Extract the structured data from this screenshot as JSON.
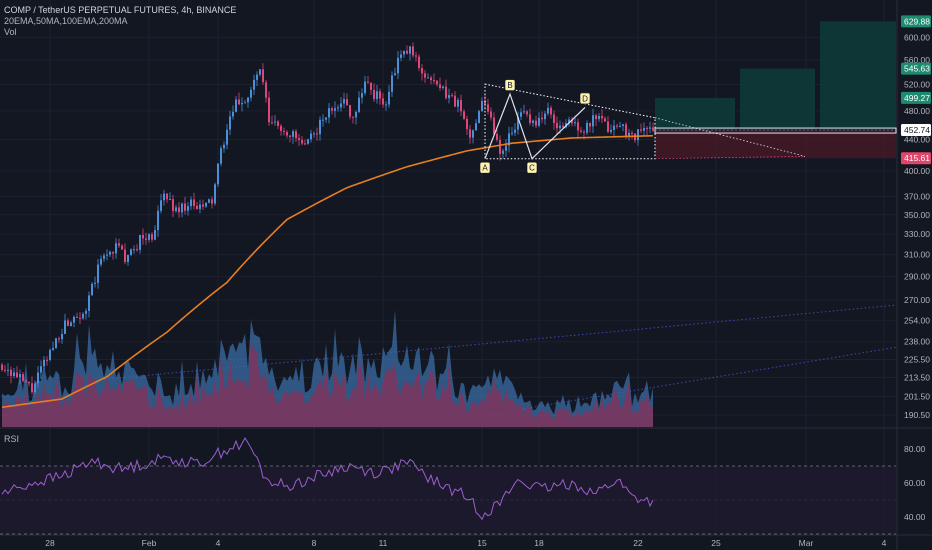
{
  "header": {
    "title": "COMP / TetherUS PERPETUAL FUTURES, 4h, BINANCE",
    "indicators": "20EMA,50MA,100EMA,200MA",
    "volume_label": "Vol"
  },
  "rsi_panel": {
    "label": "RSI"
  },
  "colors": {
    "background": "#131722",
    "bull": "#4a8fd8",
    "bear": "#e0457b",
    "ma": "#e67e22",
    "rsi": "#9c5fcf",
    "target_zone": "#0e3a3a",
    "stop_zone": "#4a1a26"
  },
  "chart_data": [
    {
      "type": "candlestick",
      "price_axis": {
        "ticks": [
          "600.00",
          "560.00",
          "520.00",
          "480.00",
          "440.00",
          "400.00",
          "370.00",
          "350.00",
          "330.00",
          "310.00",
          "290.00",
          "270.00",
          "254.00",
          "238.00",
          "225.50",
          "213.50",
          "201.50",
          "190.50"
        ],
        "scale": "log",
        "range": [
          182,
          660
        ]
      },
      "time_axis": {
        "ticks": [
          "28",
          "Feb",
          "4",
          "8",
          "11",
          "15",
          "18",
          "22",
          "25",
          "Mar",
          "4"
        ]
      },
      "price_labels": [
        {
          "value": "629.88",
          "role": "target-3"
        },
        {
          "value": "545.63",
          "role": "target-2"
        },
        {
          "value": "499.27",
          "role": "target-1"
        },
        {
          "value": "452.74",
          "role": "current-price"
        },
        {
          "value": "415.61",
          "role": "stop"
        }
      ],
      "pattern_points": [
        "A",
        "B",
        "C",
        "D"
      ],
      "pattern_prices": {
        "A": 415,
        "B": 500,
        "C": 415,
        "D": 490
      },
      "target_zones": [
        {
          "from": 452.74,
          "to": 499.27
        },
        {
          "from": 452.74,
          "to": 545.63
        },
        {
          "from": 452.74,
          "to": 629.88
        }
      ],
      "stop_zone": {
        "from": 415.61,
        "to": 452.74
      },
      "candle_path": [
        {
          "i": 0,
          "price": 222
        },
        {
          "i": 6,
          "price": 212
        },
        {
          "i": 10,
          "price": 206
        },
        {
          "i": 15,
          "price": 226
        },
        {
          "i": 20,
          "price": 248
        },
        {
          "i": 24,
          "price": 258
        },
        {
          "i": 28,
          "price": 262
        },
        {
          "i": 33,
          "price": 305
        },
        {
          "i": 38,
          "price": 318
        },
        {
          "i": 42,
          "price": 305
        },
        {
          "i": 46,
          "price": 325
        },
        {
          "i": 50,
          "price": 328
        },
        {
          "i": 54,
          "price": 372
        },
        {
          "i": 58,
          "price": 355
        },
        {
          "i": 62,
          "price": 362
        },
        {
          "i": 66,
          "price": 356
        },
        {
          "i": 70,
          "price": 365
        },
        {
          "i": 74,
          "price": 440
        },
        {
          "i": 78,
          "price": 490
        },
        {
          "i": 82,
          "price": 500
        },
        {
          "i": 86,
          "price": 545
        },
        {
          "i": 89,
          "price": 465
        },
        {
          "i": 93,
          "price": 455
        },
        {
          "i": 97,
          "price": 445
        },
        {
          "i": 101,
          "price": 428
        },
        {
          "i": 105,
          "price": 455
        },
        {
          "i": 109,
          "price": 478
        },
        {
          "i": 113,
          "price": 498
        },
        {
          "i": 117,
          "price": 472
        },
        {
          "i": 121,
          "price": 525
        },
        {
          "i": 124,
          "price": 505
        },
        {
          "i": 128,
          "price": 492
        },
        {
          "i": 132,
          "price": 560
        },
        {
          "i": 136,
          "price": 578
        },
        {
          "i": 140,
          "price": 542
        },
        {
          "i": 144,
          "price": 520
        },
        {
          "i": 148,
          "price": 505
        },
        {
          "i": 152,
          "price": 490
        },
        {
          "i": 156,
          "price": 440
        },
        {
          "i": 160,
          "price": 500
        },
        {
          "i": 163,
          "price": 470
        },
        {
          "i": 166,
          "price": 420
        },
        {
          "i": 170,
          "price": 455
        },
        {
          "i": 174,
          "price": 475
        },
        {
          "i": 178,
          "price": 465
        },
        {
          "i": 182,
          "price": 478
        },
        {
          "i": 186,
          "price": 455
        },
        {
          "i": 190,
          "price": 465
        },
        {
          "i": 194,
          "price": 452
        },
        {
          "i": 198,
          "price": 470
        },
        {
          "i": 202,
          "price": 455
        },
        {
          "i": 206,
          "price": 460
        },
        {
          "i": 210,
          "price": 445
        },
        {
          "i": 214,
          "price": 452
        },
        {
          "i": 217,
          "price": 453
        }
      ],
      "ma_path": [
        {
          "i": 0,
          "price": 195
        },
        {
          "i": 20,
          "price": 200
        },
        {
          "i": 35,
          "price": 214
        },
        {
          "i": 55,
          "price": 245
        },
        {
          "i": 75,
          "price": 285
        },
        {
          "i": 95,
          "price": 345
        },
        {
          "i": 115,
          "price": 380
        },
        {
          "i": 135,
          "price": 405
        },
        {
          "i": 155,
          "price": 425
        },
        {
          "i": 170,
          "price": 435
        },
        {
          "i": 190,
          "price": 442
        },
        {
          "i": 217,
          "price": 445
        }
      ],
      "volume_path": [
        {
          "i": 0,
          "v": 0.35
        },
        {
          "i": 8,
          "v": 0.25
        },
        {
          "i": 15,
          "v": 0.45
        },
        {
          "i": 22,
          "v": 0.3
        },
        {
          "i": 30,
          "v": 0.85
        },
        {
          "i": 35,
          "v": 0.6
        },
        {
          "i": 42,
          "v": 0.45
        },
        {
          "i": 50,
          "v": 0.35
        },
        {
          "i": 58,
          "v": 0.3
        },
        {
          "i": 65,
          "v": 0.35
        },
        {
          "i": 75,
          "v": 0.75
        },
        {
          "i": 85,
          "v": 0.8
        },
        {
          "i": 92,
          "v": 0.4
        },
        {
          "i": 100,
          "v": 0.45
        },
        {
          "i": 108,
          "v": 0.5
        },
        {
          "i": 116,
          "v": 0.65
        },
        {
          "i": 125,
          "v": 0.55
        },
        {
          "i": 135,
          "v": 0.75
        },
        {
          "i": 145,
          "v": 0.5
        },
        {
          "i": 155,
          "v": 0.3
        },
        {
          "i": 165,
          "v": 0.45
        },
        {
          "i": 175,
          "v": 0.2
        },
        {
          "i": 185,
          "v": 0.15
        },
        {
          "i": 195,
          "v": 0.15
        },
        {
          "i": 203,
          "v": 0.35
        },
        {
          "i": 210,
          "v": 0.15
        },
        {
          "i": 217,
          "v": 0.4
        }
      ],
      "rsi_path": [
        {
          "i": 0,
          "v": 54
        },
        {
          "i": 10,
          "v": 60
        },
        {
          "i": 20,
          "v": 64
        },
        {
          "i": 30,
          "v": 73
        },
        {
          "i": 40,
          "v": 68
        },
        {
          "i": 55,
          "v": 75
        },
        {
          "i": 65,
          "v": 71
        },
        {
          "i": 75,
          "v": 80
        },
        {
          "i": 82,
          "v": 84
        },
        {
          "i": 88,
          "v": 62
        },
        {
          "i": 95,
          "v": 58
        },
        {
          "i": 105,
          "v": 64
        },
        {
          "i": 115,
          "v": 70
        },
        {
          "i": 125,
          "v": 66
        },
        {
          "i": 135,
          "v": 72
        },
        {
          "i": 145,
          "v": 60
        },
        {
          "i": 155,
          "v": 52
        },
        {
          "i": 160,
          "v": 42
        },
        {
          "i": 166,
          "v": 48
        },
        {
          "i": 172,
          "v": 62
        },
        {
          "i": 180,
          "v": 56
        },
        {
          "i": 190,
          "v": 60
        },
        {
          "i": 198,
          "v": 54
        },
        {
          "i": 205,
          "v": 62
        },
        {
          "i": 210,
          "v": 52
        },
        {
          "i": 217,
          "v": 49
        }
      ],
      "rsi_axis": {
        "ticks": [
          "80.00",
          "60.00",
          "40.00"
        ],
        "range": [
          30,
          90
        ]
      }
    }
  ]
}
